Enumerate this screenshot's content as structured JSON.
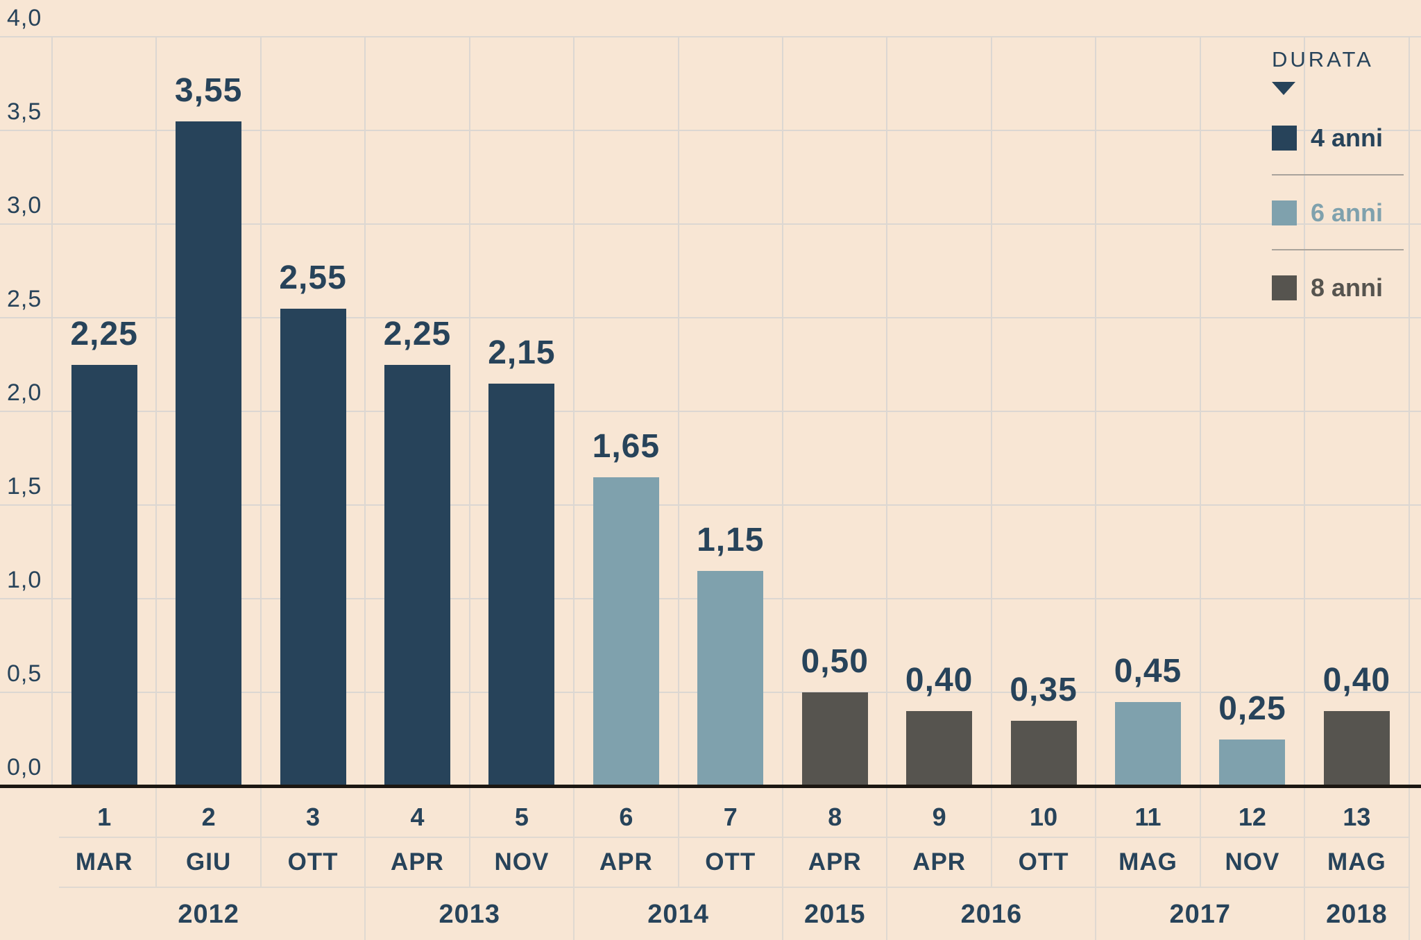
{
  "colors": {
    "background": "#f8e6d4",
    "grid": "#dcd7d2",
    "table_line": "#e0d9d1",
    "axis": "#1c1712",
    "text": "#27435a",
    "legend_divider": "#a9a39b"
  },
  "chart_data": {
    "type": "bar",
    "title": "",
    "legend_title": "DURATA",
    "legend_position": "top-right",
    "grid": true,
    "ylim": [
      0,
      4
    ],
    "y_ticks": [
      {
        "label": "4,0",
        "value": 4.0
      },
      {
        "label": "3,5",
        "value": 3.5
      },
      {
        "label": "3,0",
        "value": 3.0
      },
      {
        "label": "2,5",
        "value": 2.5
      },
      {
        "label": "2,0",
        "value": 2.0
      },
      {
        "label": "1,5",
        "value": 1.5
      },
      {
        "label": "1,0",
        "value": 1.0
      },
      {
        "label": "0,5",
        "value": 0.5
      },
      {
        "label": "0,0",
        "value": 0.0
      }
    ],
    "series": [
      {
        "name": "4 anni",
        "color": "#27435a"
      },
      {
        "name": "6 anni",
        "color": "#7fa1ad"
      },
      {
        "name": "8 anni",
        "color": "#56544f"
      }
    ],
    "bars": [
      {
        "index": "1",
        "month": "MAR",
        "year": "2012",
        "value": 2.25,
        "label": "2,25",
        "series": "4 anni"
      },
      {
        "index": "2",
        "month": "GIU",
        "year": "2012",
        "value": 3.55,
        "label": "3,55",
        "series": "4 anni"
      },
      {
        "index": "3",
        "month": "OTT",
        "year": "2012",
        "value": 2.55,
        "label": "2,55",
        "series": "4 anni"
      },
      {
        "index": "4",
        "month": "APR",
        "year": "2013",
        "value": 2.25,
        "label": "2,25",
        "series": "4 anni"
      },
      {
        "index": "5",
        "month": "NOV",
        "year": "2013",
        "value": 2.15,
        "label": "2,15",
        "series": "4 anni"
      },
      {
        "index": "6",
        "month": "APR",
        "year": "2014",
        "value": 1.65,
        "label": "1,65",
        "series": "6 anni"
      },
      {
        "index": "7",
        "month": "OTT",
        "year": "2014",
        "value": 1.15,
        "label": "1,15",
        "series": "6 anni"
      },
      {
        "index": "8",
        "month": "APR",
        "year": "2015",
        "value": 0.5,
        "label": "0,50",
        "series": "8 anni"
      },
      {
        "index": "9",
        "month": "APR",
        "year": "2016",
        "value": 0.4,
        "label": "0,40",
        "series": "8 anni"
      },
      {
        "index": "10",
        "month": "OTT",
        "year": "2016",
        "value": 0.35,
        "label": "0,35",
        "series": "8 anni"
      },
      {
        "index": "11",
        "month": "MAG",
        "year": "2017",
        "value": 0.45,
        "label": "0,45",
        "series": "6 anni"
      },
      {
        "index": "12",
        "month": "NOV",
        "year": "2017",
        "value": 0.25,
        "label": "0,25",
        "series": "6 anni"
      },
      {
        "index": "13",
        "month": "MAG",
        "year": "2018",
        "value": 0.4,
        "label": "0,40",
        "series": "8 anni"
      }
    ],
    "year_groups": [
      {
        "year": "2012",
        "span": 3
      },
      {
        "year": "2013",
        "span": 2
      },
      {
        "year": "2014",
        "span": 2
      },
      {
        "year": "2015",
        "span": 1
      },
      {
        "year": "2016",
        "span": 2
      },
      {
        "year": "2017",
        "span": 2
      },
      {
        "year": "2018",
        "span": 1
      }
    ]
  }
}
